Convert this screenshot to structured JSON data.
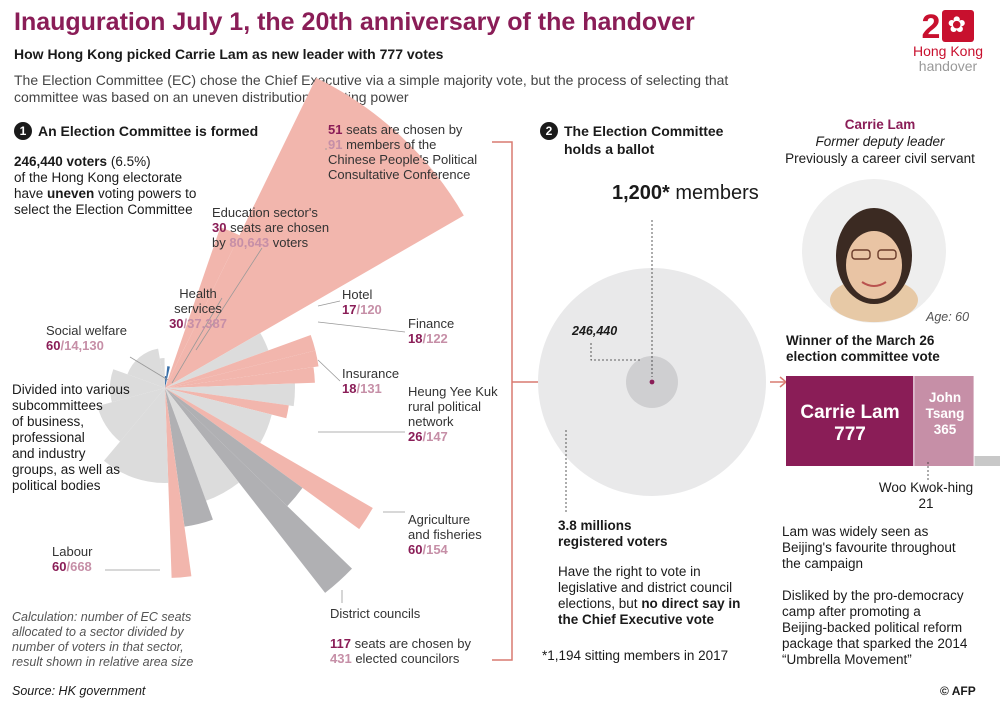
{
  "header": {
    "title": "Inauguration July 1, the 20th anniversary of the handover",
    "subtitle": "How Hong Kong picked Carrie Lam as new leader with 777 votes",
    "intro": "The Election Committee (EC) chose the Chief Executive via a simple majority vote, but  the process of selecting that committee was based on an uneven distribution of voting power"
  },
  "logo": {
    "big": "2",
    "line1": "Hong Kong",
    "line2": "handover"
  },
  "step1": {
    "badge": "1",
    "heading": "An Election Committee is formed",
    "voters_bold": "246,440 voters",
    "voters_pct": " (6.5%)",
    "line2": "of  the Hong Kong electorate",
    "line3a": "have ",
    "line3b": "uneven",
    "line3c": " voting powers to",
    "line4": "select the Election Committee",
    "subcommittees": [
      "Divided into various",
      "subcommittees",
      "of business,",
      "professional",
      "and industry",
      "groups, as well as",
      "political bodies"
    ],
    "calc_note": [
      "Calculation: number of EC seats",
      "allocated to a sector divided by",
      "number of voters in that sector,",
      "result shown in relative area size"
    ],
    "source": "Source: HK government"
  },
  "sectors": {
    "cppcc": {
      "seats": "51",
      "text1": " seats are chosen by",
      "members": "91",
      "text2": " members of the",
      "text3": "Chinese People's Political",
      "text4": "Consultative Conference"
    },
    "education": {
      "line1": "Education sector's",
      "seats": "30",
      "text2": " seats are chosen",
      "text3a": "by ",
      "voters": "80,643",
      "text3b": " voters"
    },
    "health": {
      "line1": "Health",
      "line2": "services",
      "seats": "30",
      "voters": "37,387"
    },
    "social": {
      "line1": "Social welfare",
      "seats": "60",
      "voters": "14,130"
    },
    "hotel": {
      "line1": "Hotel",
      "seats": "17",
      "voters": "120"
    },
    "finance": {
      "line1": "Finance",
      "seats": "18",
      "voters": "122"
    },
    "insurance": {
      "line1": "Insurance",
      "seats": "18",
      "voters": "131"
    },
    "heung": {
      "line1": "Heung Yee Kuk",
      "line2": "rural political",
      "line3": "network",
      "seats": "26",
      "voters": "147"
    },
    "agri": {
      "line1": "Agriculture",
      "line2": "and fisheries",
      "seats": "60",
      "voters": "154"
    },
    "labour": {
      "line1": "Labour",
      "seats": "60",
      "voters": "668"
    },
    "district": {
      "line1": "District councils",
      "seats": "117",
      "text2": " seats are chosen by",
      "councillors": "431",
      "text3": " elected councilors"
    }
  },
  "step2": {
    "badge": "2",
    "heading1": "The Election Committee",
    "heading2": "holds a ballot",
    "members_num": "1,200*",
    "members_txt": " members",
    "small_label": "246,440",
    "millions1": "3.8 millions",
    "millions2": "registered voters",
    "right1": "Have the right to vote in",
    "right2": "legislative and district council",
    "right3a": "elections, but ",
    "right3b": "no direct say in",
    "right4": "the Chief Executive vote",
    "footnote": "*1,194 sitting members in 2017"
  },
  "step3": {
    "name": "Carrie Lam",
    "role": "Former deputy leader",
    "career": "Previously a career civil servant",
    "age": "Age: 60",
    "winner1": "Winner of the March 26",
    "winner2": "election committee vote",
    "bar_lam_name": "Carrie Lam",
    "bar_lam_votes": "777",
    "bar_tsang_name1": "John",
    "bar_tsang_name2": "Tsang",
    "bar_tsang_votes": "365",
    "woo_name": "Woo Kwok-hing",
    "woo_votes": "21",
    "p1": [
      "Lam was widely seen as",
      "Beijing's favourite throughout",
      "the campaign"
    ],
    "p2": [
      "Disliked by the pro-democracy",
      "camp after promoting a",
      "Beijing-backed political reform",
      "package that sparked the 2014",
      "“Umbrella Movement”"
    ],
    "credit": "© AFP"
  },
  "chart_data": {
    "type": "bar",
    "categories": [
      "Carrie Lam",
      "John Tsang",
      "Woo Kwok-hing"
    ],
    "values": [
      777,
      365,
      21
    ],
    "colors": {
      "accent": "#8a1d57",
      "tsang": "#c68fa7",
      "woo": "#c8c8c8",
      "pink": "#f2b6ad",
      "gray_dark": "#b0b0b3",
      "gray_light": "#dcdcdc",
      "blue": "#3a6fa8"
    }
  }
}
